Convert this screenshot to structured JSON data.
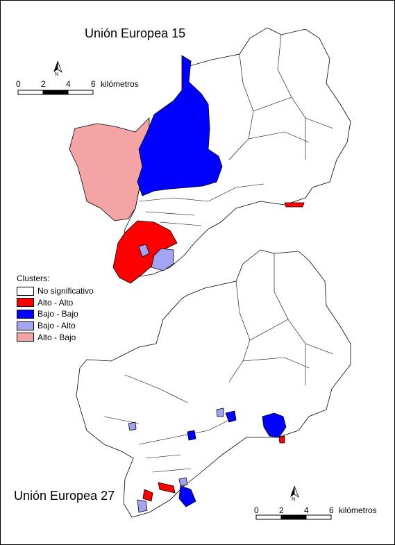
{
  "maps": {
    "top": {
      "title": "Unión Europea 15"
    },
    "bottom": {
      "title": "Unión Europea 27"
    }
  },
  "scale_bar": {
    "ticks": [
      "0",
      "2",
      "4",
      "6"
    ],
    "unit": "kilómetros",
    "north_letter": "N"
  },
  "legend": {
    "title": "Clusters:",
    "items": [
      {
        "label": "No significativo",
        "color": "#ffffff"
      },
      {
        "label": "Alto - Alto",
        "color": "#ff0000"
      },
      {
        "label": "Bajo - Bajo",
        "color": "#0000ff"
      },
      {
        "label": "Bajo - Alto",
        "color": "#a4a4f4"
      },
      {
        "label": "Alto - Bajo",
        "color": "#f4a4a4"
      }
    ]
  }
}
